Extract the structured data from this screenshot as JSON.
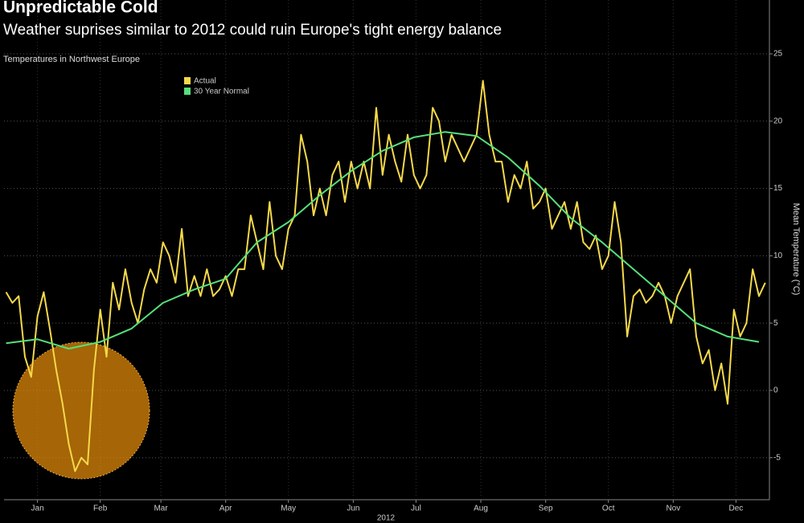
{
  "chart_data": {
    "type": "line",
    "title": "Unpredictable Cold",
    "subtitle": "Weather suprises similar to 2012 could ruin Europe's tight energy balance",
    "chart_label": "Temperatures in Northwest Europe",
    "y_label": "Mean Temperature (°C)",
    "x_label": "2012",
    "xlim": [
      0,
      366
    ],
    "xticks": [
      {
        "value": 16,
        "label": "Jan"
      },
      {
        "value": 46,
        "label": "Feb"
      },
      {
        "value": 75,
        "label": "Mar"
      },
      {
        "value": 106,
        "label": "Apr"
      },
      {
        "value": 136,
        "label": "May"
      },
      {
        "value": 167,
        "label": "Jun"
      },
      {
        "value": 197,
        "label": "Jul"
      },
      {
        "value": 228,
        "label": "Aug"
      },
      {
        "value": 259,
        "label": "Sep"
      },
      {
        "value": 289,
        "label": "Oct"
      },
      {
        "value": 320,
        "label": "Nov"
      },
      {
        "value": 350,
        "label": "Dec"
      }
    ],
    "ylim": [
      -8,
      29
    ],
    "yticks": [
      -5,
      0,
      5,
      10,
      15,
      20,
      25
    ],
    "grid": true,
    "x": [
      1,
      4,
      7,
      10,
      13,
      16,
      19,
      22,
      25,
      28,
      31,
      34,
      37,
      40,
      43,
      46,
      49,
      52,
      55,
      58,
      61,
      64,
      67,
      70,
      73,
      76,
      79,
      82,
      85,
      88,
      91,
      94,
      97,
      100,
      103,
      106,
      109,
      112,
      115,
      118,
      121,
      124,
      127,
      130,
      133,
      136,
      139,
      142,
      145,
      148,
      151,
      154,
      157,
      160,
      163,
      166,
      169,
      172,
      175,
      178,
      181,
      184,
      187,
      190,
      193,
      196,
      199,
      202,
      205,
      208,
      211,
      214,
      217,
      220,
      223,
      226,
      229,
      232,
      235,
      238,
      241,
      244,
      247,
      250,
      253,
      256,
      259,
      262,
      265,
      268,
      271,
      274,
      277,
      280,
      283,
      286,
      289,
      292,
      295,
      298,
      301,
      304,
      307,
      310,
      313,
      316,
      319,
      322,
      325,
      328,
      331,
      334,
      337,
      340,
      343,
      346,
      349,
      352,
      355,
      358,
      361,
      364
    ],
    "series": [
      {
        "name": "Actual",
        "color": "#f5d94a",
        "values": [
          7.3,
          6.5,
          7.0,
          2.5,
          1.0,
          5.5,
          7.3,
          4.5,
          1.5,
          -1,
          -4,
          -6,
          -5,
          -5.5,
          1.5,
          6,
          2.5,
          8,
          6,
          9,
          6.5,
          5,
          7.5,
          9,
          8,
          11,
          10,
          8,
          12,
          7,
          8.5,
          7,
          9,
          7,
          7.5,
          8.5,
          7,
          9,
          9,
          13,
          11,
          9,
          14,
          10,
          9,
          12,
          13,
          19,
          17,
          13,
          15,
          13,
          16,
          17,
          14,
          17,
          15,
          17,
          15,
          21,
          16,
          19,
          17,
          15.5,
          19,
          16,
          15,
          16,
          21,
          20,
          17,
          19,
          18,
          17,
          18,
          19,
          23,
          19,
          17,
          17,
          14,
          16,
          15,
          17,
          13.5,
          14,
          15,
          12,
          13,
          14,
          12,
          14,
          11,
          10.5,
          11.5,
          9,
          10,
          14,
          11,
          4,
          7,
          7.5,
          6.5,
          7,
          8,
          7,
          5,
          7,
          8,
          9,
          4,
          2,
          3,
          0,
          2,
          -1,
          6,
          4,
          5,
          9,
          7,
          8
        ]
      },
      {
        "name": "30 Year Normal",
        "color": "#55e07a",
        "x": [
          1,
          16,
          31,
          46,
          61,
          76,
          91,
          106,
          121,
          136,
          151,
          166,
          181,
          196,
          211,
          226,
          241,
          256,
          271,
          286,
          301,
          316,
          331,
          346,
          361
        ],
        "values": [
          3.5,
          3.8,
          3.1,
          3.6,
          4.6,
          6.5,
          7.5,
          8.3,
          11,
          12.5,
          14.5,
          16.3,
          17.8,
          18.8,
          19.2,
          18.9,
          17.3,
          15.2,
          12.8,
          11,
          9,
          7,
          5,
          4,
          3.6
        ]
      }
    ]
  }
}
